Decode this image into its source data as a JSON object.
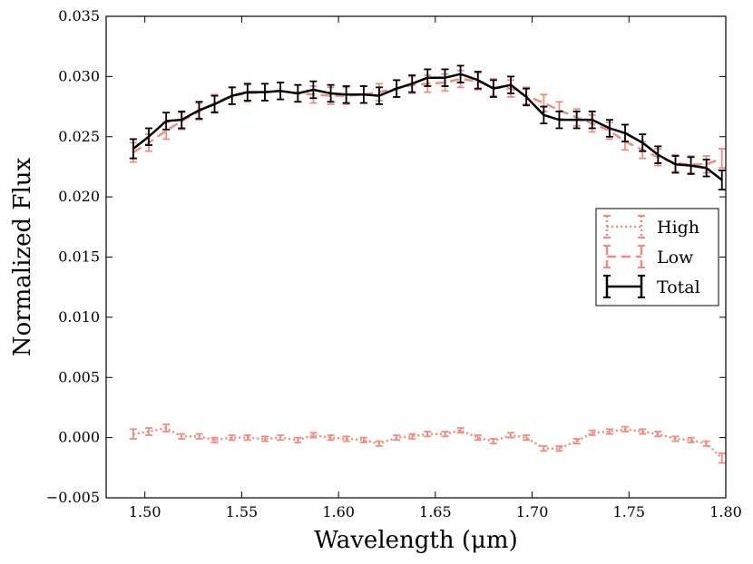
{
  "chart_data": {
    "type": "line",
    "xlabel": "Wavelength (μm)",
    "ylabel": "Normalized Flux",
    "xlim": [
      1.48,
      1.8
    ],
    "ylim": [
      -0.005,
      0.035
    ],
    "xticks": [
      1.5,
      1.55,
      1.6,
      1.65,
      1.7,
      1.75,
      1.8
    ],
    "xtick_labels": [
      "1.50",
      "1.55",
      "1.60",
      "1.65",
      "1.70",
      "1.75",
      "1.80"
    ],
    "yticks": [
      -0.005,
      0.0,
      0.005,
      0.01,
      0.015,
      0.02,
      0.025,
      0.03,
      0.035
    ],
    "ytick_labels": [
      "−0.005",
      "0.000",
      "0.005",
      "0.010",
      "0.015",
      "0.020",
      "0.025",
      "0.030",
      "0.035"
    ],
    "grid": false,
    "legend_position": "center-right",
    "x": [
      1.494,
      1.502,
      1.511,
      1.519,
      1.528,
      1.536,
      1.545,
      1.553,
      1.562,
      1.57,
      1.579,
      1.587,
      1.596,
      1.604,
      1.613,
      1.621,
      1.63,
      1.638,
      1.646,
      1.655,
      1.663,
      1.672,
      1.68,
      1.689,
      1.697,
      1.706,
      1.714,
      1.723,
      1.731,
      1.74,
      1.748,
      1.757,
      1.765,
      1.774,
      1.782,
      1.79,
      1.798
    ],
    "series": [
      {
        "name": "High",
        "color": "#f08c7d",
        "style": "dotted",
        "values": [
          0.0003,
          0.0005,
          0.0008,
          0.0001,
          0.0001,
          -0.0002,
          0.0,
          0.0,
          -0.0001,
          0.0,
          -0.0002,
          0.0002,
          0.0,
          -0.0001,
          -0.0002,
          -0.0005,
          0.0,
          0.0001,
          0.0003,
          0.0003,
          0.0006,
          0.0,
          -0.0003,
          0.0002,
          0.0,
          -0.0009,
          -0.0009,
          -0.0003,
          0.0004,
          0.0005,
          0.0007,
          0.0005,
          0.0003,
          -0.0001,
          -0.0002,
          -0.0005,
          -0.0017
        ],
        "errors": [
          0.0004,
          0.0003,
          0.0003,
          0.0002,
          0.0002,
          0.0002,
          0.0002,
          0.0002,
          0.0002,
          0.0002,
          0.0002,
          0.0002,
          0.0002,
          0.0002,
          0.0002,
          0.0002,
          0.0002,
          0.0002,
          0.0002,
          0.0002,
          0.0002,
          0.0002,
          0.0002,
          0.0002,
          0.0002,
          0.0002,
          0.0002,
          0.0002,
          0.0002,
          0.0002,
          0.0002,
          0.0002,
          0.0002,
          0.0002,
          0.0002,
          0.0002,
          0.0004
        ]
      },
      {
        "name": "Low",
        "color": "#f08c7d",
        "style": "dashed",
        "values": [
          0.0237,
          0.0245,
          0.0255,
          0.0263,
          0.0271,
          0.0278,
          0.0284,
          0.0286,
          0.0287,
          0.0288,
          0.0286,
          0.0285,
          0.0284,
          0.0284,
          0.0285,
          0.0287,
          0.029,
          0.0293,
          0.0294,
          0.0295,
          0.0298,
          0.0296,
          0.0291,
          0.029,
          0.0284,
          0.0278,
          0.0272,
          0.0266,
          0.0261,
          0.0255,
          0.0246,
          0.0239,
          0.0233,
          0.0228,
          0.0227,
          0.0227,
          0.0232
        ],
        "errors": [
          0.0008,
          0.0007,
          0.0007,
          0.0007,
          0.0007,
          0.0007,
          0.0007,
          0.0007,
          0.0007,
          0.0007,
          0.0007,
          0.0007,
          0.0007,
          0.0007,
          0.0007,
          0.0007,
          0.0007,
          0.0007,
          0.0007,
          0.0007,
          0.0007,
          0.0007,
          0.0007,
          0.0007,
          0.0007,
          0.0007,
          0.0007,
          0.0007,
          0.0007,
          0.0007,
          0.0007,
          0.0007,
          0.0007,
          0.0007,
          0.0007,
          0.0007,
          0.0008
        ]
      },
      {
        "name": "Total",
        "color": "#000000",
        "style": "solid",
        "values": [
          0.024,
          0.025,
          0.0263,
          0.0264,
          0.0272,
          0.0277,
          0.0284,
          0.0287,
          0.0287,
          0.0288,
          0.0286,
          0.0289,
          0.0286,
          0.0285,
          0.0285,
          0.0284,
          0.029,
          0.0294,
          0.0299,
          0.0299,
          0.0302,
          0.0297,
          0.029,
          0.0293,
          0.0283,
          0.0268,
          0.0264,
          0.0264,
          0.0264,
          0.0257,
          0.0253,
          0.0245,
          0.0235,
          0.0227,
          0.0226,
          0.0224,
          0.0214
        ],
        "errors": [
          0.0008,
          0.0007,
          0.0007,
          0.0007,
          0.0007,
          0.0007,
          0.0007,
          0.0007,
          0.0007,
          0.0007,
          0.0007,
          0.0007,
          0.0007,
          0.0007,
          0.0007,
          0.0007,
          0.0007,
          0.0007,
          0.0007,
          0.0007,
          0.0007,
          0.0007,
          0.0007,
          0.0007,
          0.0007,
          0.0007,
          0.0007,
          0.0007,
          0.0007,
          0.0007,
          0.0007,
          0.0007,
          0.0007,
          0.0007,
          0.0007,
          0.0007,
          0.0008
        ]
      }
    ]
  }
}
